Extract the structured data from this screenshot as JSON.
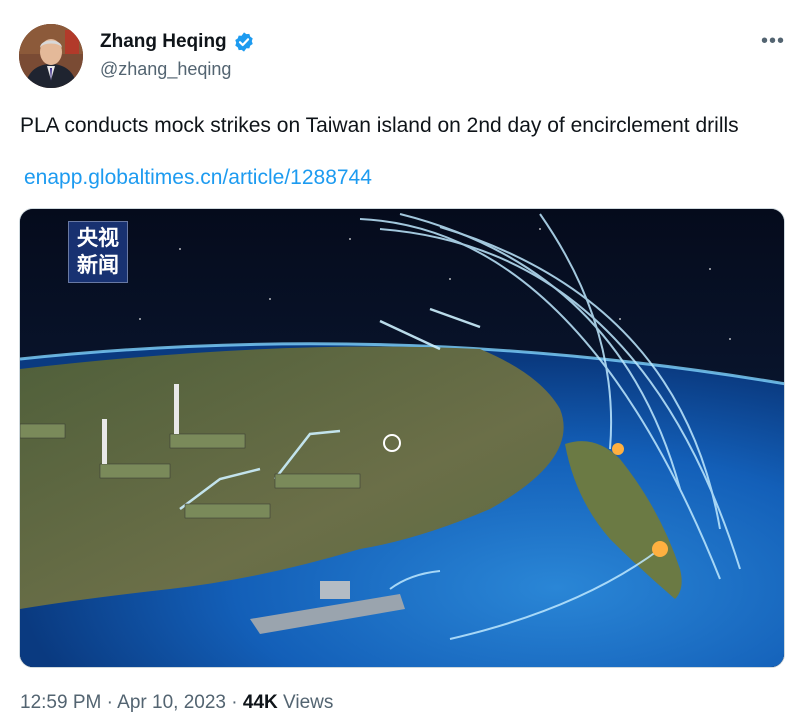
{
  "author": {
    "name": "Zhang Heqing",
    "handle": "@zhang_heqing",
    "verified": true
  },
  "more_icon": "more-horizontal-icon",
  "tweet": {
    "text": "PLA conducts mock strikes on Taiwan island on 2nd day of encirclement drills",
    "link": "enapp.globaltimes.cn/article/1288744"
  },
  "media": {
    "logo_line1": "央视",
    "logo_line2": "新闻"
  },
  "meta": {
    "time": "12:59 PM",
    "separator": "·",
    "date": "Apr 10, 2023",
    "views_count": "44K",
    "views_label": "Views"
  },
  "colors": {
    "link": "#1d9bf0",
    "verified": "#1d9bf0",
    "secondary_text": "#536471",
    "primary_text": "#0f1419"
  }
}
